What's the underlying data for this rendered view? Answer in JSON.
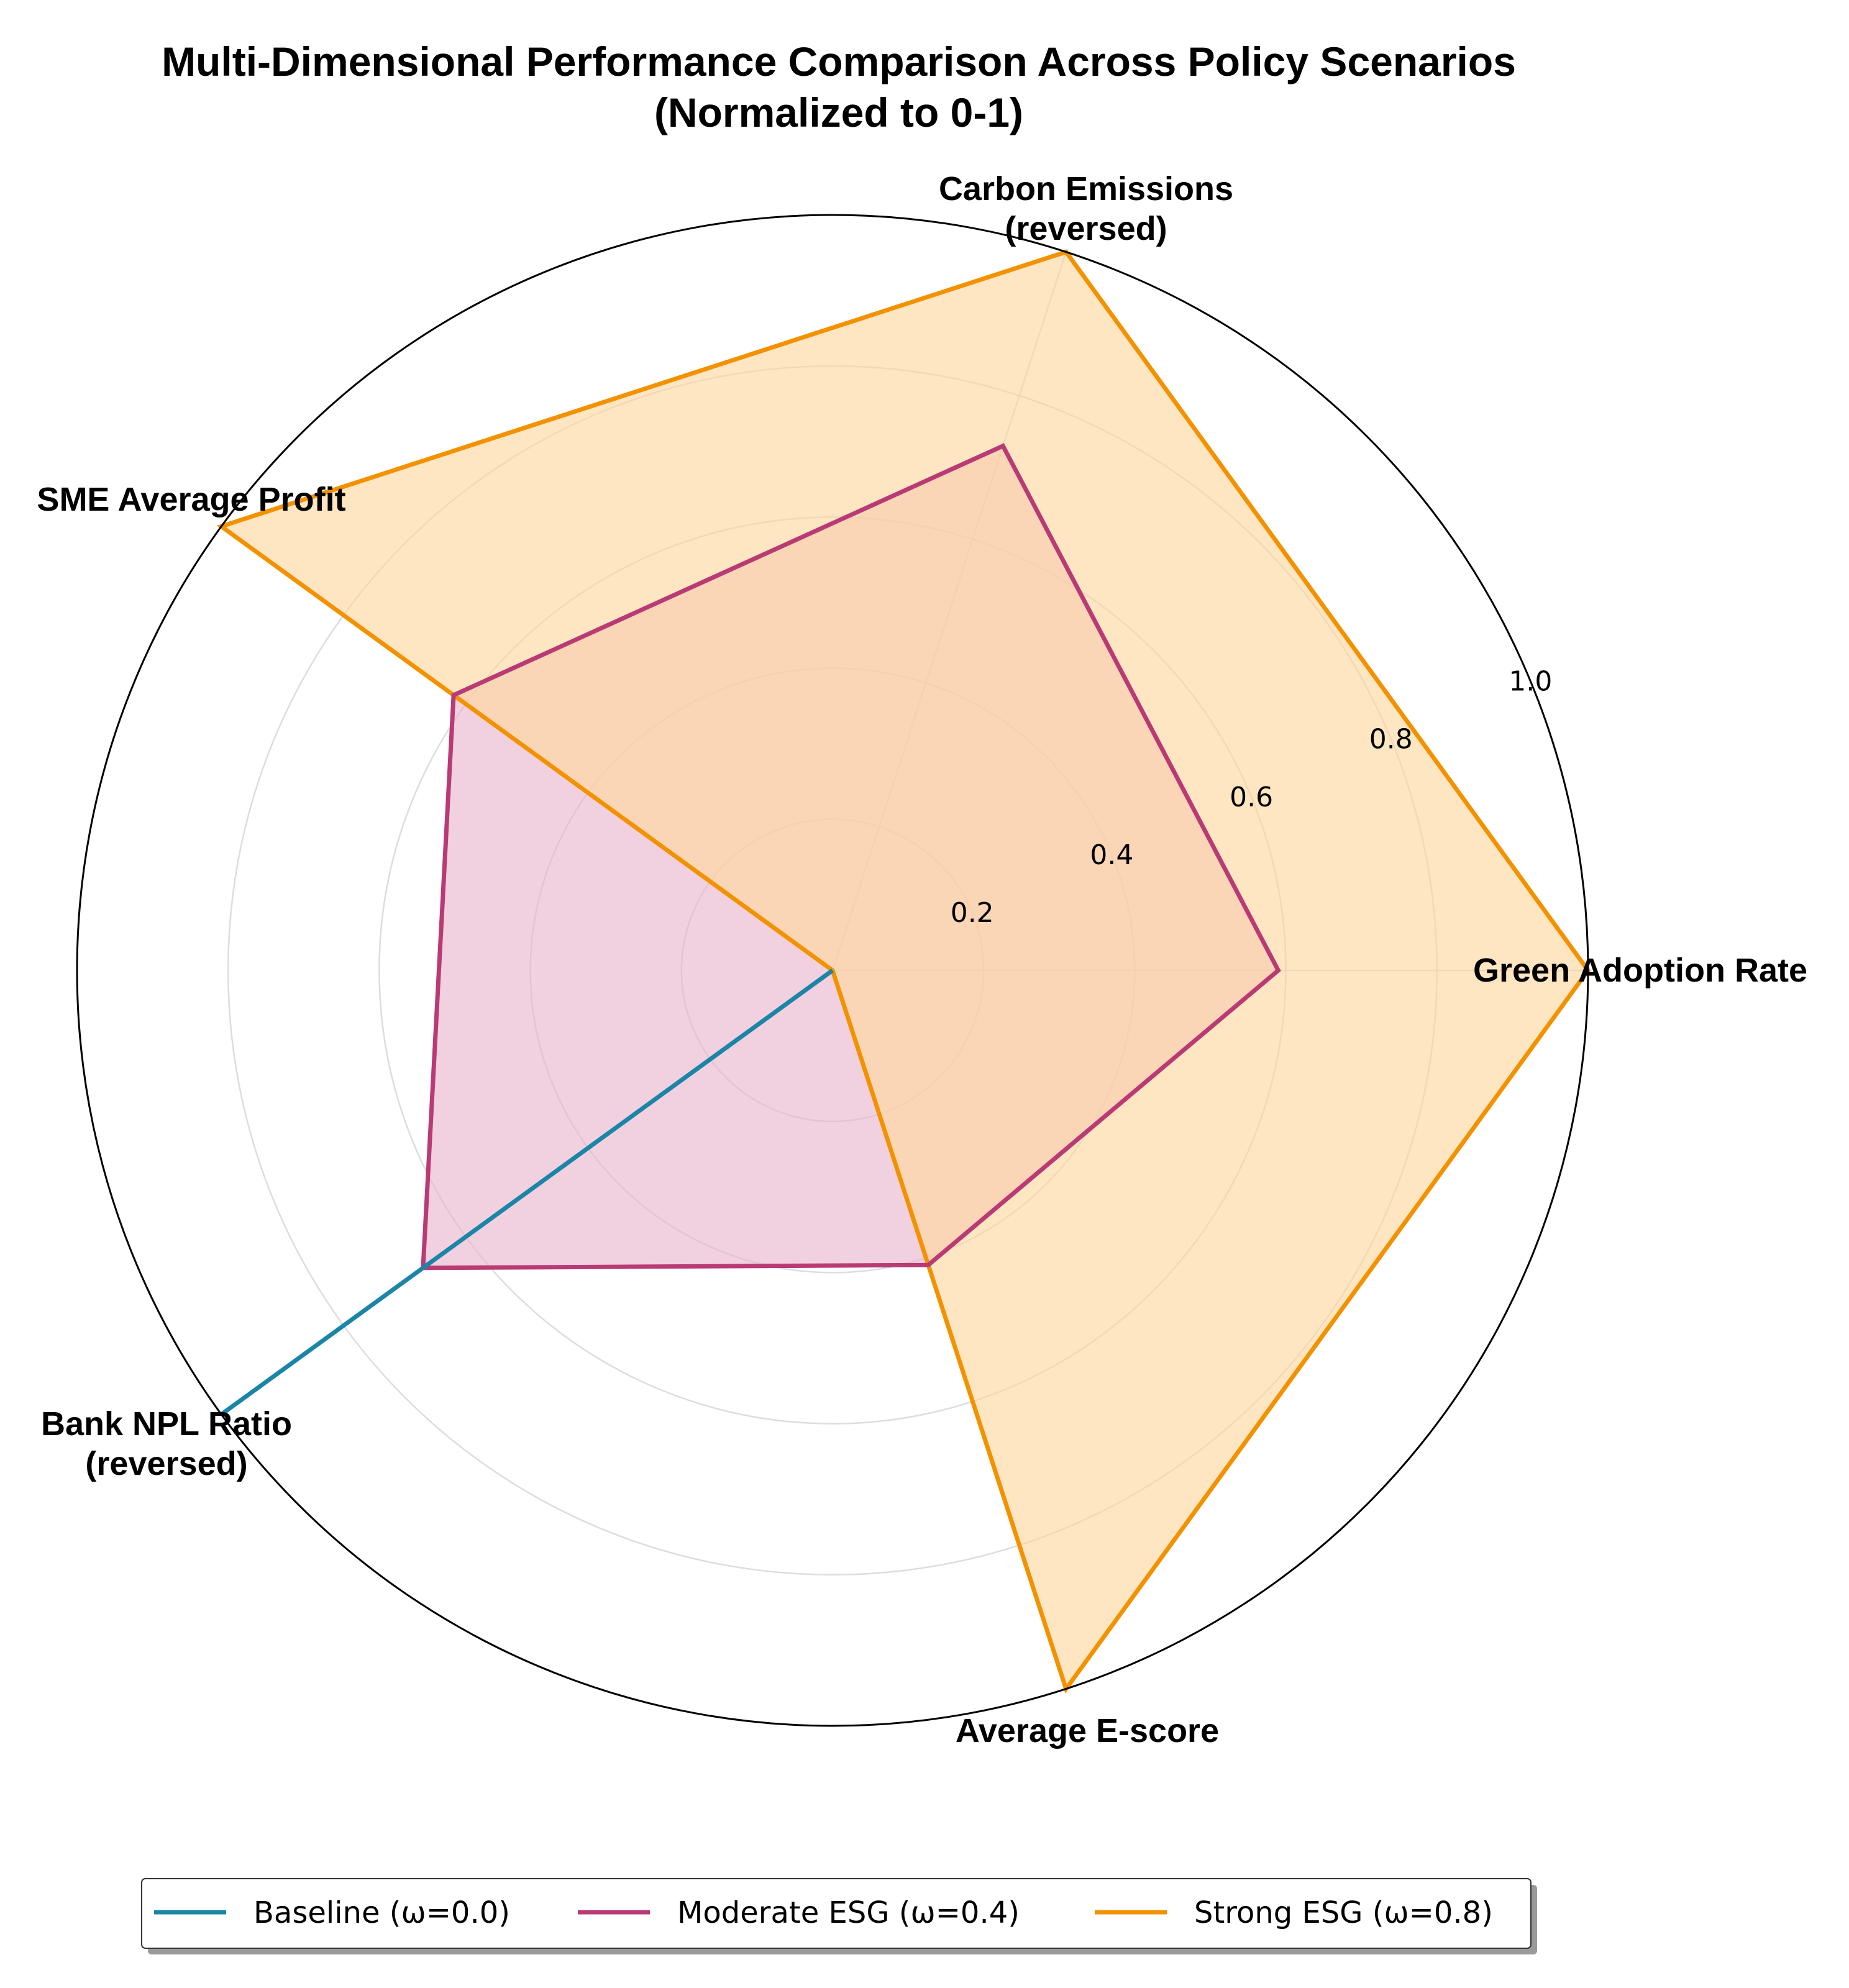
{
  "chart_data": {
    "type": "radar",
    "title": "Multi-Dimensional Performance Comparison Across Policy Scenarios\n(Normalized to 0-1)",
    "axes": [
      "Green Adoption Rate",
      "Carbon Emissions\n(reversed)",
      "SME Average Profit",
      "Bank NPL Ratio\n(reversed)",
      "Average E-score"
    ],
    "rlim": [
      0,
      1.0
    ],
    "r_ticks": [
      "0.2",
      "0.4",
      "0.6",
      "0.8",
      "1.0"
    ],
    "r_tick_values": [
      0.2,
      0.4,
      0.6,
      0.8,
      1.0
    ],
    "grid": true,
    "legend_position": "bottom-center",
    "series": [
      {
        "name": "Baseline (ω=0.0)",
        "color": "#1b85a7",
        "fill": false,
        "values": [
          0.0,
          0.0,
          0.0,
          1.0,
          0.0
        ]
      },
      {
        "name": "Moderate ESG (ω=0.4)",
        "color": "#b93a74",
        "fill": true,
        "fill_color": "#e8b4cc",
        "values": [
          0.59,
          0.73,
          0.62,
          0.67,
          0.41
        ]
      },
      {
        "name": "Strong ESG (ω=0.8)",
        "color": "#f39200",
        "fill": true,
        "fill_color": "#ffd79d",
        "values": [
          1.0,
          1.0,
          1.0,
          0.0,
          1.0
        ]
      }
    ]
  }
}
